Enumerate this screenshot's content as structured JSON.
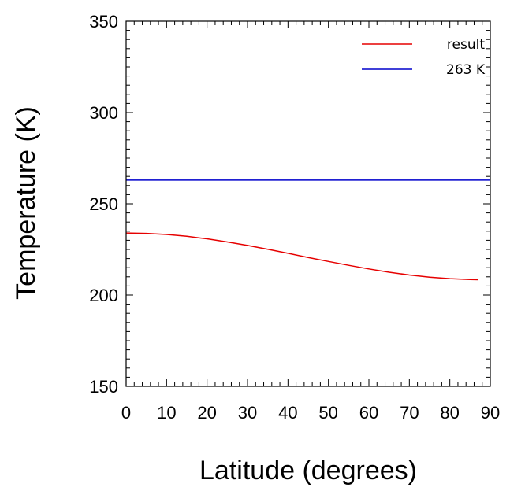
{
  "chart_data": {
    "type": "line",
    "title": "",
    "xlabel": "Latitude (degrees)",
    "ylabel": "Temperature (K)",
    "xlim": [
      0,
      90
    ],
    "ylim": [
      150,
      350
    ],
    "x_ticks": [
      0,
      10,
      20,
      30,
      40,
      50,
      60,
      70,
      80,
      90
    ],
    "y_ticks": [
      150,
      200,
      250,
      300,
      350
    ],
    "x_tick_labels": [
      "0",
      "10",
      "20",
      "30",
      "40",
      "50",
      "60",
      "70",
      "80",
      "90"
    ],
    "y_tick_labels": [
      "150",
      "200",
      "250",
      "300",
      "350"
    ],
    "grid": false,
    "legend_position": "top-right",
    "series": [
      {
        "name": "result",
        "color": "#e60000",
        "x": [
          0,
          5,
          10,
          15,
          20,
          25,
          30,
          35,
          40,
          45,
          50,
          55,
          60,
          65,
          70,
          75,
          80,
          85,
          87
        ],
        "y": [
          234,
          233.8,
          233.2,
          232.2,
          230.8,
          229.1,
          227.2,
          225.1,
          222.9,
          220.6,
          218.4,
          216.3,
          214.3,
          212.5,
          211,
          209.8,
          209,
          208.5,
          208.4
        ]
      },
      {
        "name": "263 K",
        "color": "#0000cc",
        "x": [
          0,
          90
        ],
        "y": [
          263,
          263
        ]
      }
    ]
  }
}
